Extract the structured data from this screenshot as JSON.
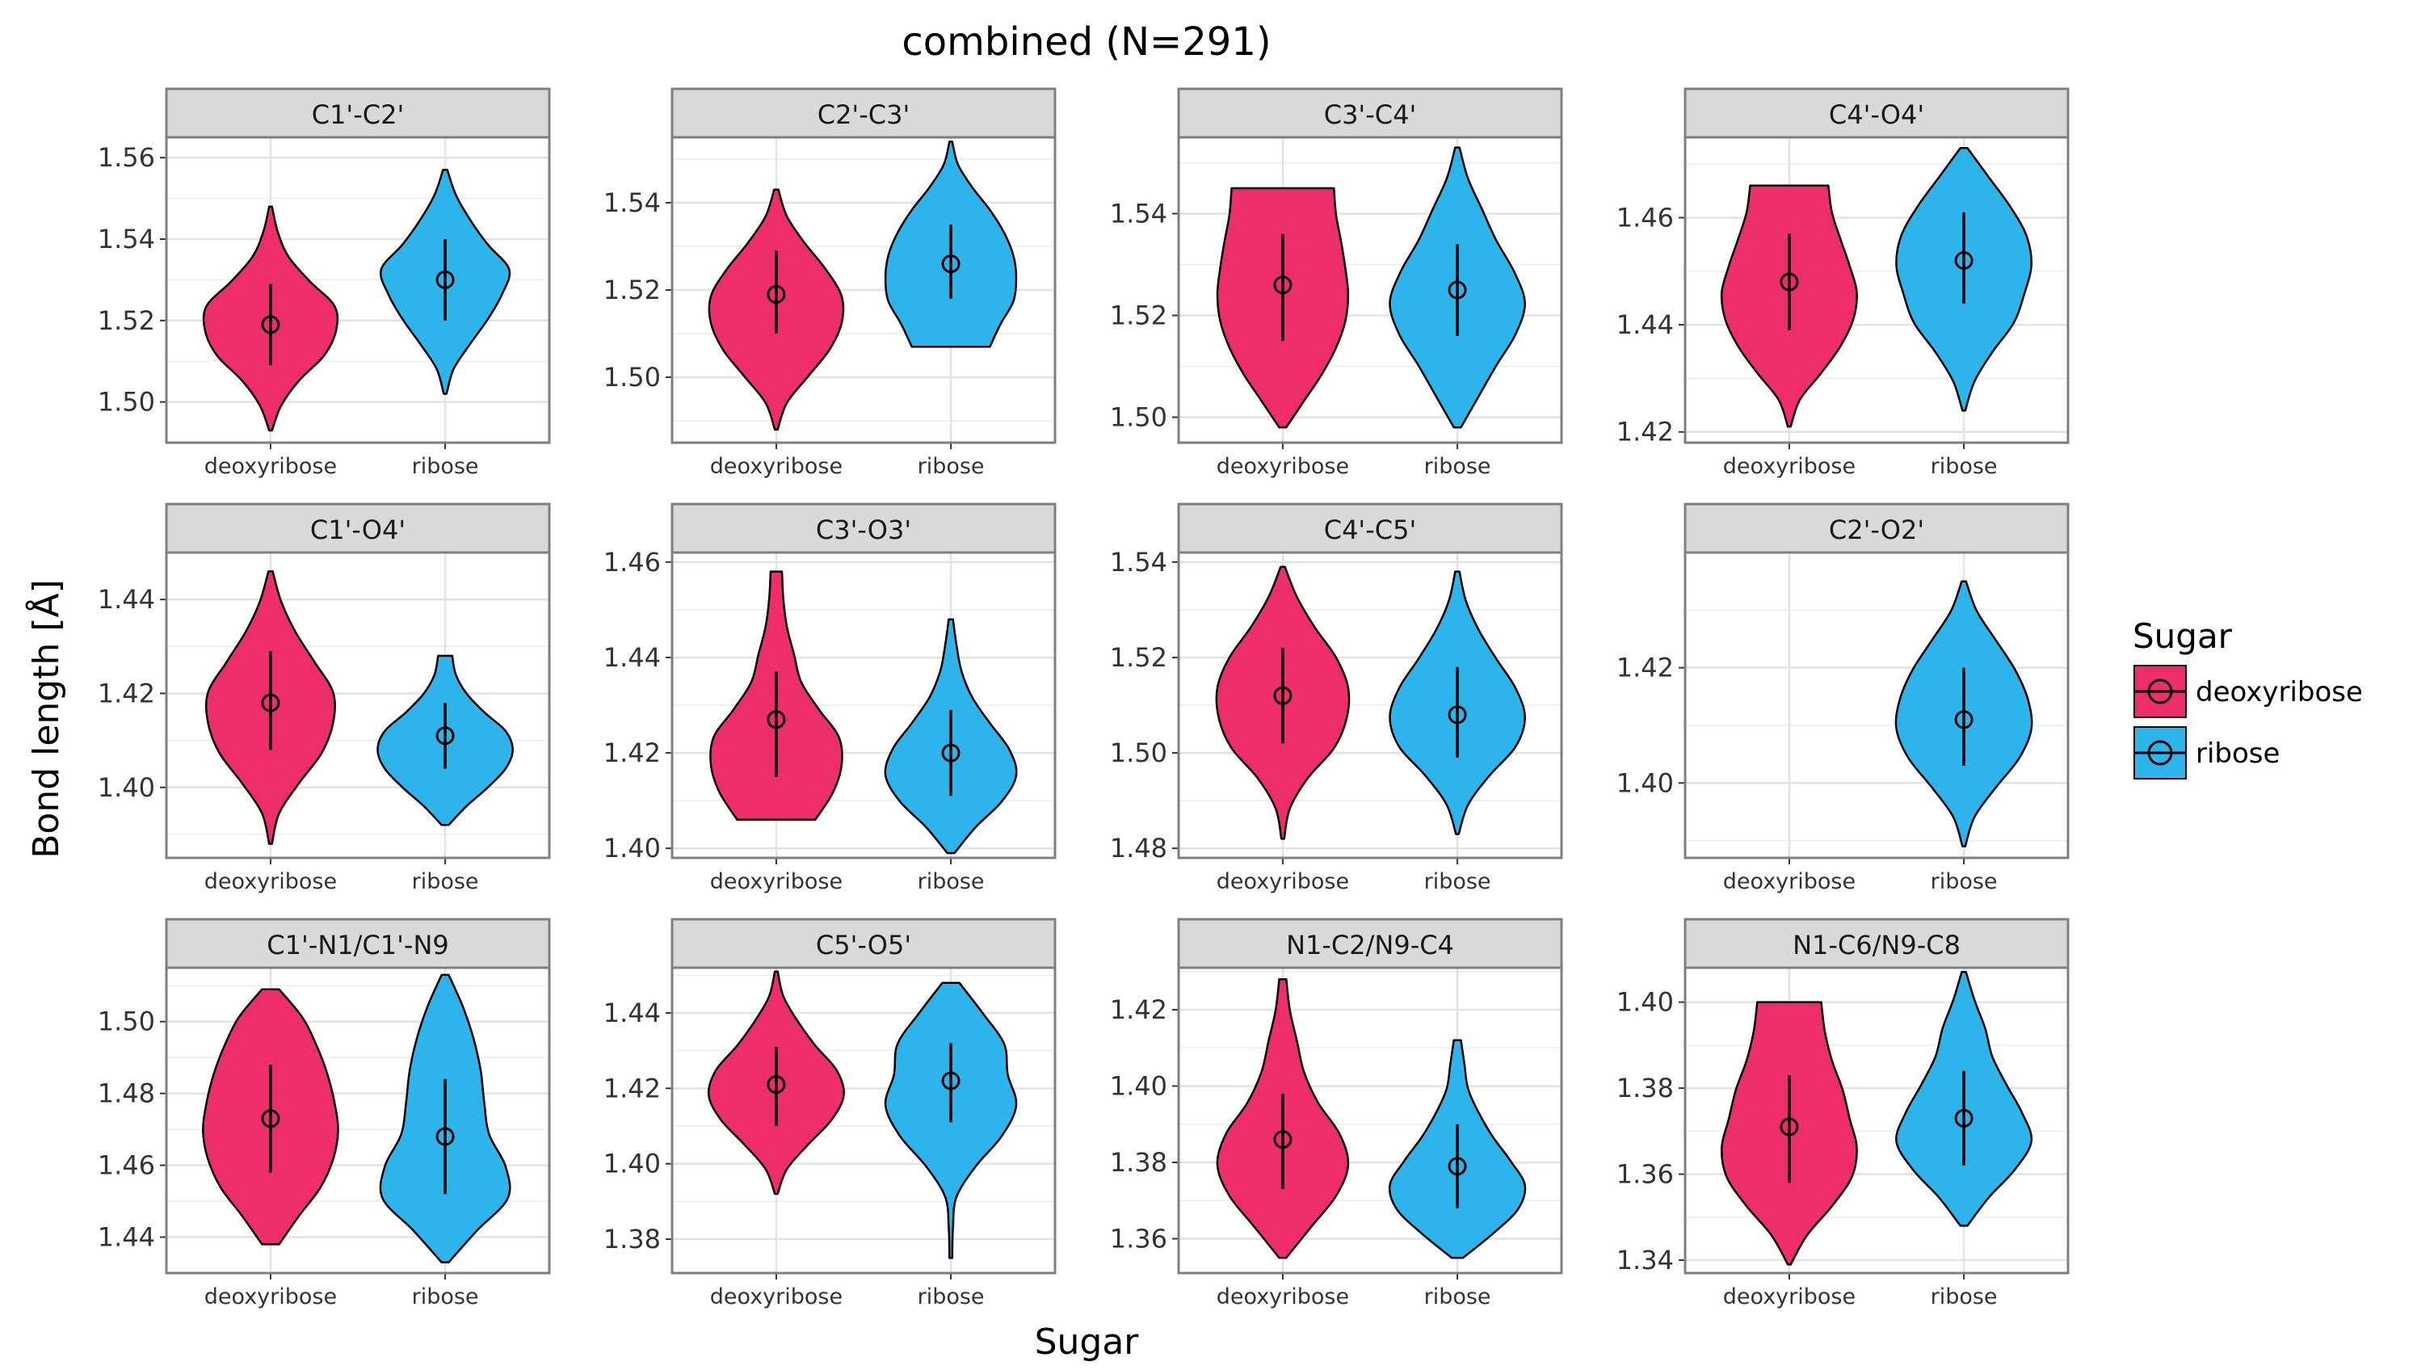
{
  "chart_data": {
    "type": "violin",
    "title": "combined (N=291)",
    "xlabel": "Sugar",
    "ylabel": "Bond length [Å]",
    "categories": [
      "deoxyribose",
      "ribose"
    ],
    "legend": {
      "title": "Sugar",
      "placement": "right",
      "entries": [
        {
          "label": "deoxyribose",
          "color": "#EE2E6C"
        },
        {
          "label": "ribose",
          "color": "#2DB5EB"
        }
      ]
    },
    "grid": true,
    "facets": [
      {
        "title": "C1'-C2'",
        "ylim": [
          1.49,
          1.565
        ],
        "yticks": [
          "1.50",
          "1.52",
          "1.54",
          "1.56"
        ],
        "violins": [
          {
            "category": "deoxyribose",
            "min": 1.493,
            "max": 1.548,
            "mean": 1.519,
            "err_low": 1.509,
            "err_high": 1.529,
            "widths": [
              0.02,
              0.15,
              0.4,
              0.75,
              0.92,
              0.9,
              0.55,
              0.25,
              0.1,
              0.02
            ]
          },
          {
            "category": "ribose",
            "min": 1.502,
            "max": 1.557,
            "mean": 1.53,
            "err_low": 1.52,
            "err_high": 1.54,
            "widths": [
              0.02,
              0.12,
              0.35,
              0.6,
              0.8,
              0.9,
              0.6,
              0.35,
              0.15,
              0.03
            ]
          }
        ]
      },
      {
        "title": "C2'-C3'",
        "ylim": [
          1.485,
          1.555
        ],
        "yticks": [
          "1.50",
          "1.52",
          "1.54"
        ],
        "violins": [
          {
            "category": "deoxyribose",
            "min": 1.488,
            "max": 1.543,
            "mean": 1.519,
            "err_low": 1.51,
            "err_high": 1.529,
            "widths": [
              0.02,
              0.15,
              0.45,
              0.75,
              0.92,
              0.92,
              0.7,
              0.4,
              0.15,
              0.03
            ]
          },
          {
            "category": "ribose",
            "min": 1.507,
            "max": 1.554,
            "mean": 1.526,
            "err_low": 1.518,
            "err_high": 1.535,
            "widths": [
              0.55,
              0.7,
              0.88,
              0.92,
              0.88,
              0.75,
              0.55,
              0.3,
              0.1,
              0.02
            ]
          }
        ]
      },
      {
        "title": "C3'-C4'",
        "ylim": [
          1.495,
          1.555
        ],
        "yticks": [
          "1.50",
          "1.52",
          "1.54"
        ],
        "violins": [
          {
            "category": "deoxyribose",
            "min": 1.498,
            "max": 1.545,
            "mean": 1.526,
            "err_low": 1.515,
            "err_high": 1.536,
            "widths": [
              0.05,
              0.3,
              0.55,
              0.75,
              0.88,
              0.92,
              0.88,
              0.82,
              0.75,
              0.72
            ]
          },
          {
            "category": "ribose",
            "min": 1.498,
            "max": 1.553,
            "mean": 1.525,
            "err_low": 1.516,
            "err_high": 1.534,
            "widths": [
              0.05,
              0.3,
              0.55,
              0.82,
              0.95,
              0.8,
              0.55,
              0.35,
              0.15,
              0.03
            ]
          }
        ]
      },
      {
        "title": "C4'-O4'",
        "ylim": [
          1.418,
          1.475
        ],
        "yticks": [
          "1.42",
          "1.44",
          "1.46"
        ],
        "violins": [
          {
            "category": "deoxyribose",
            "min": 1.421,
            "max": 1.466,
            "mean": 1.448,
            "err_low": 1.439,
            "err_high": 1.457,
            "widths": [
              0.02,
              0.15,
              0.45,
              0.72,
              0.9,
              0.95,
              0.85,
              0.72,
              0.6,
              0.55
            ]
          },
          {
            "category": "ribose",
            "min": 1.424,
            "max": 1.473,
            "mean": 1.452,
            "err_low": 1.444,
            "err_high": 1.461,
            "widths": [
              0.02,
              0.15,
              0.4,
              0.7,
              0.85,
              0.95,
              0.88,
              0.65,
              0.35,
              0.05
            ]
          }
        ]
      },
      {
        "title": "C1'-O4'",
        "ylim": [
          1.385,
          1.45
        ],
        "yticks": [
          "1.40",
          "1.42",
          "1.44"
        ],
        "violins": [
          {
            "category": "deoxyribose",
            "min": 1.388,
            "max": 1.446,
            "mean": 1.418,
            "err_low": 1.408,
            "err_high": 1.429,
            "widths": [
              0.02,
              0.12,
              0.4,
              0.72,
              0.88,
              0.88,
              0.62,
              0.35,
              0.15,
              0.03
            ]
          },
          {
            "category": "ribose",
            "min": 1.392,
            "max": 1.428,
            "mean": 1.411,
            "err_low": 1.404,
            "err_high": 1.418,
            "widths": [
              0.05,
              0.3,
              0.6,
              0.85,
              0.95,
              0.85,
              0.55,
              0.3,
              0.15,
              0.1
            ]
          }
        ]
      },
      {
        "title": "C3'-O3'",
        "ylim": [
          1.398,
          1.462
        ],
        "yticks": [
          "1.40",
          "1.42",
          "1.44",
          "1.46"
        ],
        "violins": [
          {
            "category": "deoxyribose",
            "min": 1.406,
            "max": 1.458,
            "mean": 1.427,
            "err_low": 1.415,
            "err_high": 1.437,
            "widths": [
              0.55,
              0.8,
              0.92,
              0.88,
              0.6,
              0.35,
              0.25,
              0.15,
              0.1,
              0.08
            ]
          },
          {
            "category": "ribose",
            "min": 1.399,
            "max": 1.448,
            "mean": 1.42,
            "err_low": 1.411,
            "err_high": 1.429,
            "widths": [
              0.05,
              0.35,
              0.72,
              0.92,
              0.82,
              0.55,
              0.3,
              0.15,
              0.08,
              0.03
            ]
          }
        ]
      },
      {
        "title": "C4'-C5'",
        "ylim": [
          1.478,
          1.542
        ],
        "yticks": [
          "1.48",
          "1.50",
          "1.52",
          "1.54"
        ],
        "violins": [
          {
            "category": "deoxyribose",
            "min": 1.482,
            "max": 1.539,
            "mean": 1.512,
            "err_low": 1.502,
            "err_high": 1.522,
            "widths": [
              0.02,
              0.1,
              0.35,
              0.72,
              0.9,
              0.92,
              0.75,
              0.45,
              0.2,
              0.03
            ]
          },
          {
            "category": "ribose",
            "min": 1.483,
            "max": 1.538,
            "mean": 1.508,
            "err_low": 1.499,
            "err_high": 1.518,
            "widths": [
              0.02,
              0.15,
              0.45,
              0.82,
              0.95,
              0.82,
              0.55,
              0.3,
              0.12,
              0.03
            ]
          }
        ]
      },
      {
        "title": "C2'-O2'",
        "ylim": [
          1.387,
          1.44
        ],
        "yticks": [
          "1.40",
          "1.42"
        ],
        "violins": [
          {
            "category": "ribose",
            "min": 1.389,
            "max": 1.435,
            "mean": 1.411,
            "err_low": 1.403,
            "err_high": 1.42,
            "widths": [
              0.02,
              0.15,
              0.45,
              0.78,
              0.95,
              0.9,
              0.72,
              0.45,
              0.18,
              0.03
            ]
          }
        ]
      },
      {
        "title": "C1'-N1/C1'-N9",
        "ylim": [
          1.43,
          1.515
        ],
        "yticks": [
          "1.44",
          "1.46",
          "1.48",
          "1.50"
        ],
        "violins": [
          {
            "category": "deoxyribose",
            "min": 1.438,
            "max": 1.509,
            "mean": 1.473,
            "err_low": 1.458,
            "err_high": 1.488,
            "widths": [
              0.12,
              0.4,
              0.7,
              0.88,
              0.95,
              0.9,
              0.8,
              0.65,
              0.45,
              0.12
            ]
          },
          {
            "category": "ribose",
            "min": 1.433,
            "max": 1.513,
            "mean": 1.468,
            "err_low": 1.452,
            "err_high": 1.484,
            "widths": [
              0.05,
              0.45,
              0.88,
              0.85,
              0.62,
              0.55,
              0.5,
              0.4,
              0.25,
              0.05
            ]
          }
        ]
      },
      {
        "title": "C5'-O5'",
        "ylim": [
          1.371,
          1.452
        ],
        "yticks": [
          "1.38",
          "1.40",
          "1.42",
          "1.44"
        ],
        "violins": [
          {
            "category": "deoxyribose",
            "min": 1.392,
            "max": 1.451,
            "mean": 1.421,
            "err_low": 1.41,
            "err_high": 1.431,
            "widths": [
              0.02,
              0.15,
              0.45,
              0.78,
              0.95,
              0.85,
              0.55,
              0.3,
              0.1,
              0.02
            ]
          },
          {
            "category": "ribose",
            "min": 1.375,
            "max": 1.448,
            "mean": 1.422,
            "err_low": 1.411,
            "err_high": 1.432,
            "widths": [
              0.02,
              0.03,
              0.08,
              0.35,
              0.72,
              0.92,
              0.8,
              0.75,
              0.45,
              0.12
            ]
          }
        ]
      },
      {
        "title": "N1-C2/N9-C4",
        "ylim": [
          1.351,
          1.431
        ],
        "yticks": [
          "1.36",
          "1.38",
          "1.40",
          "1.42"
        ],
        "violins": [
          {
            "category": "deoxyribose",
            "min": 1.355,
            "max": 1.428,
            "mean": 1.386,
            "err_low": 1.373,
            "err_high": 1.398,
            "widths": [
              0.05,
              0.4,
              0.75,
              0.92,
              0.8,
              0.5,
              0.3,
              0.2,
              0.1,
              0.05
            ]
          },
          {
            "category": "ribose",
            "min": 1.355,
            "max": 1.412,
            "mean": 1.379,
            "err_low": 1.368,
            "err_high": 1.39,
            "widths": [
              0.08,
              0.5,
              0.85,
              0.95,
              0.75,
              0.5,
              0.3,
              0.15,
              0.1,
              0.05
            ]
          }
        ]
      },
      {
        "title": "N1-C6/N9-C8",
        "ylim": [
          1.337,
          1.408
        ],
        "yticks": [
          "1.34",
          "1.36",
          "1.38",
          "1.40"
        ],
        "violins": [
          {
            "category": "deoxyribose",
            "min": 1.339,
            "max": 1.4,
            "mean": 1.371,
            "err_low": 1.358,
            "err_high": 1.383,
            "widths": [
              0.02,
              0.25,
              0.6,
              0.88,
              0.95,
              0.85,
              0.75,
              0.6,
              0.5,
              0.45
            ]
          },
          {
            "category": "ribose",
            "min": 1.348,
            "max": 1.407,
            "mean": 1.373,
            "err_low": 1.362,
            "err_high": 1.384,
            "widths": [
              0.05,
              0.35,
              0.72,
              0.95,
              0.82,
              0.6,
              0.4,
              0.3,
              0.15,
              0.03
            ]
          }
        ]
      }
    ]
  }
}
